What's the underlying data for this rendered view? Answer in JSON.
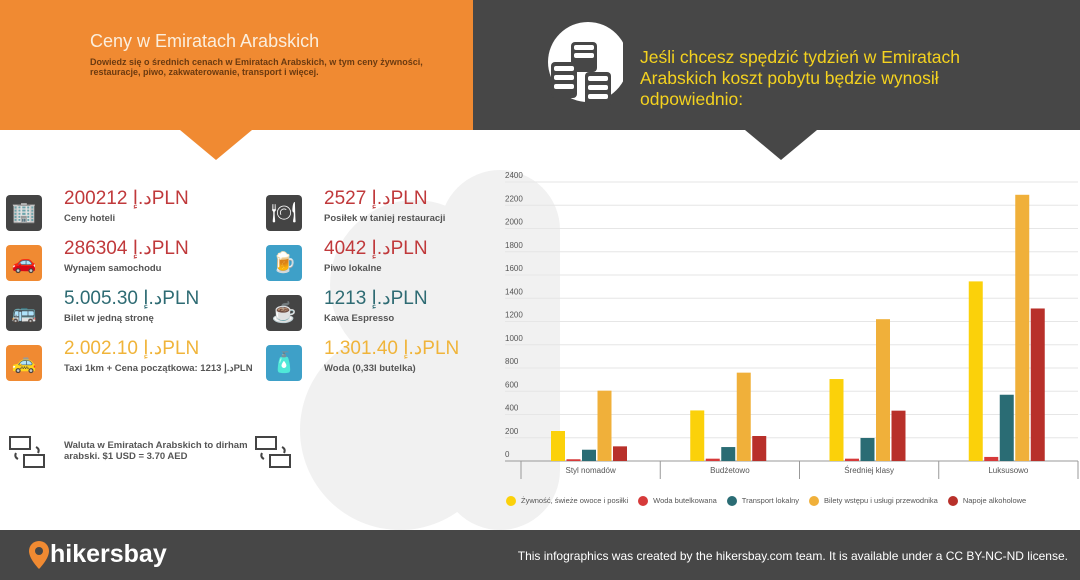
{
  "header": {
    "title": "Ceny w Emiratach Arabskich",
    "subtitle": "Dowiedz się o średnich cenach w Emiratach Arabskich, w tym ceny żywności, restauracje, piwo, zakwaterowanie, transport i więcej.",
    "right_title": "Jeśli chcesz spędzić tydzień w Emiratach Arabskich koszt pobytu będzie wynosił odpowiednio:"
  },
  "prices": [
    {
      "icon": "hotel-icon",
      "value": "200212 د.إPLN",
      "label": "Ceny hoteli",
      "color": "#c0393b"
    },
    {
      "icon": "car-icon",
      "value": "286304 د.إPLN",
      "label": "Wynajem samochodu",
      "color": "#c0393b"
    },
    {
      "icon": "bus-icon",
      "value": "5.005.30 د.إPLN",
      "label": "Bilet w jedną stronę",
      "color": "#2e6b73"
    },
    {
      "icon": "taxi-icon",
      "value": "2.002.10 د.إPLN",
      "label": "Taxi 1km + Cena początkowa: 1213 د.إPLN",
      "color": "#f0b43a"
    },
    {
      "icon": "restaurant-icon",
      "value": "2527 د.إPLN",
      "label": "Posiłek w taniej restauracji",
      "color": "#c0393b"
    },
    {
      "icon": "beer-icon",
      "value": "4042 د.إPLN",
      "label": "Piwo lokalne",
      "color": "#c0393b"
    },
    {
      "icon": "coffee-icon",
      "value": "1213 د.إPLN",
      "label": "Kawa Espresso",
      "color": "#2e6b73"
    },
    {
      "icon": "water-bottle-icon",
      "value": "1.301.40 د.إPLN",
      "label": "Woda (0,33l butelka)",
      "color": "#f0b43a"
    }
  ],
  "currency_note": "Waluta w Emiratach Arabskich to dirham arabski. $1 USD = 3.70 AED",
  "footer": {
    "logo": "hikersbay",
    "credit": "This infographics was created by the hikersbay.com team. It is available under a CC BY-NC-ND license."
  },
  "chart_data": {
    "type": "bar",
    "categories": [
      "Styl nomadów",
      "Budżetowo",
      "Średniej klasy",
      "Luksusowo"
    ],
    "ylim": [
      0,
      2400
    ],
    "yticks": [
      0,
      200,
      400,
      600,
      800,
      1000,
      1200,
      1400,
      1600,
      1800,
      2000,
      2200,
      2400
    ],
    "grid": true,
    "legend": "bottom",
    "series": [
      {
        "name": "Żywność, świeże owoce i posiłki",
        "color": "#fbd10a",
        "values": [
          258,
          435,
          705,
          1545
        ]
      },
      {
        "name": "Woda butelkowana",
        "color": "#d63a3a",
        "values": [
          15,
          20,
          20,
          35
        ]
      },
      {
        "name": "Transport lokalny",
        "color": "#2a6c74",
        "values": [
          97,
          120,
          198,
          570
        ]
      },
      {
        "name": "Bilety wstępu i usługi przewodnika",
        "color": "#f0b03a",
        "values": [
          605,
          760,
          1220,
          2290
        ]
      },
      {
        "name": "Napoje alkoholowe",
        "color": "#b8302a",
        "values": [
          126,
          215,
          433,
          1312
        ]
      }
    ]
  }
}
